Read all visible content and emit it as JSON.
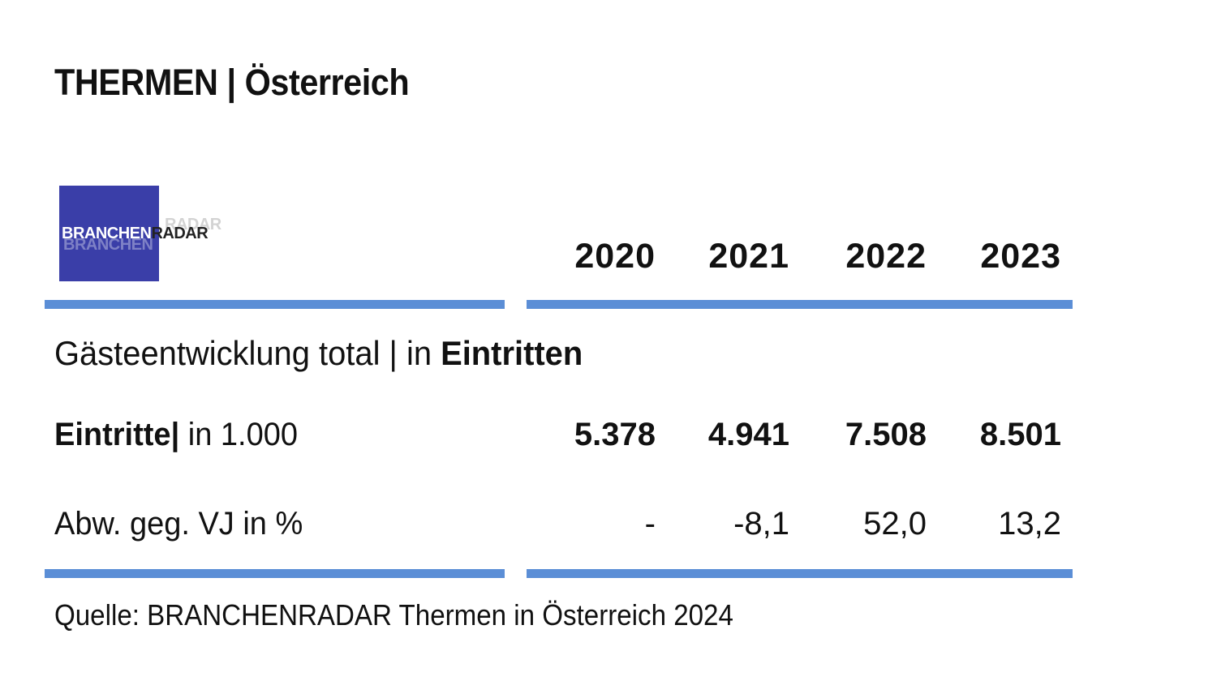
{
  "title": "THERMEN | Österreich",
  "logo": {
    "brand": "BRANCHEN",
    "radar": "RADAR",
    "box_color": "#3a3ea8"
  },
  "accent_color": "#5b8ed6",
  "section": {
    "prefix": "Gästeentwicklung total | in ",
    "bold": "Eintritten"
  },
  "chart_data": {
    "type": "table",
    "columns": [
      "2020",
      "2021",
      "2022",
      "2023"
    ],
    "rows": [
      {
        "label_bold": "Eintritte",
        "label_sep": "|",
        "label_rest": " in 1.000",
        "values": [
          "5.378",
          "4.941",
          "7.508",
          "8.501"
        ]
      },
      {
        "label_bold": "",
        "label_sep": "",
        "label_rest": "Abw. geg. VJ in %",
        "values": [
          "-",
          "-8,1",
          "52,0",
          "13,2"
        ]
      }
    ]
  },
  "source": "Quelle: BRANCHENRADAR Thermen in Österreich 2024"
}
